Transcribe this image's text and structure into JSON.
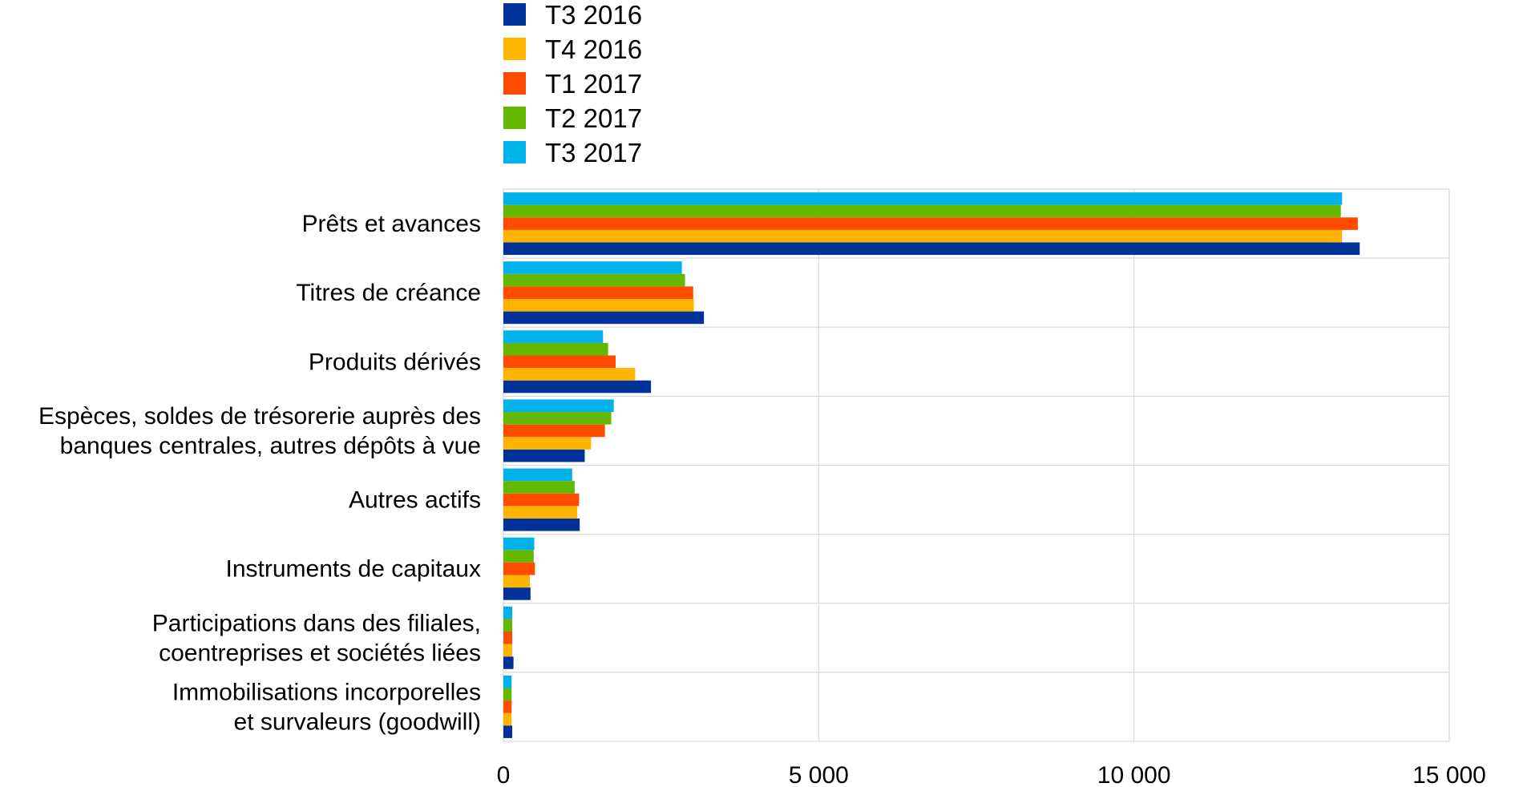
{
  "chart_data": {
    "type": "bar",
    "orientation": "horizontal",
    "title": "",
    "xlabel": "",
    "ylabel": "",
    "xlim": [
      0,
      15000
    ],
    "xticks": [
      0,
      5000,
      10000,
      15000
    ],
    "xtick_labels": [
      "0",
      "5 000",
      "10 000",
      "15 000"
    ],
    "grid": true,
    "legend_position": "top",
    "categories": [
      [
        "Prêts et avances"
      ],
      [
        "Titres de créance"
      ],
      [
        "Produits dérivés"
      ],
      [
        "Espèces, soldes de trésorerie auprès des",
        "banques centrales, autres dépôts à vue"
      ],
      [
        "Autres actifs"
      ],
      [
        "Instruments de capitaux"
      ],
      [
        "Participations dans des filiales,",
        "coentreprises et sociétés liées"
      ],
      [
        "Immobilisations incorporelles",
        "et survaleurs (goodwill)"
      ]
    ],
    "series": [
      {
        "name": "T3 2016",
        "color": "#003299",
        "values": [
          13580,
          3180,
          2340,
          1290,
          1210,
          430,
          160,
          140
        ]
      },
      {
        "name": "T4 2016",
        "color": "#ffb400",
        "values": [
          13300,
          3020,
          2090,
          1390,
          1170,
          420,
          140,
          130
        ]
      },
      {
        "name": "T1 2017",
        "color": "#ff4b00",
        "values": [
          13550,
          3010,
          1780,
          1610,
          1200,
          500,
          140,
          130
        ]
      },
      {
        "name": "T2 2017",
        "color": "#65b800",
        "values": [
          13280,
          2880,
          1660,
          1710,
          1130,
          480,
          140,
          130
        ]
      },
      {
        "name": "T3 2017",
        "color": "#00b1ea",
        "values": [
          13300,
          2830,
          1580,
          1750,
          1090,
          490,
          140,
          130
        ]
      }
    ]
  }
}
